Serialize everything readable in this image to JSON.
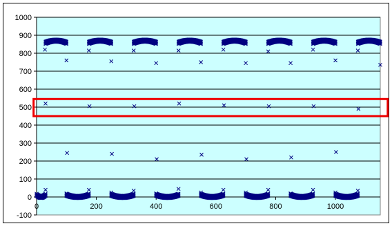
{
  "chart_data": {
    "type": "scatter",
    "title": "",
    "xlabel": "",
    "ylabel": "",
    "xlim": [
      0,
      1150
    ],
    "ylim": [
      -100,
      1000
    ],
    "xticks": [
      0,
      200,
      400,
      600,
      800,
      1000
    ],
    "yticks": [
      -100,
      0,
      100,
      200,
      300,
      400,
      500,
      600,
      700,
      800,
      900,
      1000
    ],
    "grid": true,
    "legend": "none",
    "plot_background": "#ccffff",
    "marker": "x",
    "marker_color": "#000080",
    "series": [
      {
        "clusters": [
          {
            "x_start": 0,
            "x_end": 30,
            "y_center": 0
          },
          {
            "x_start": 30,
            "x_end": 100,
            "y_center": 870
          },
          {
            "x_start": 100,
            "x_end": 175,
            "y_center": 0
          },
          {
            "x_start": 175,
            "x_end": 250,
            "y_center": 870
          },
          {
            "x_start": 250,
            "x_end": 325,
            "y_center": 0
          },
          {
            "x_start": 325,
            "x_end": 400,
            "y_center": 870
          },
          {
            "x_start": 400,
            "x_end": 475,
            "y_center": 0
          },
          {
            "x_start": 475,
            "x_end": 550,
            "y_center": 870
          },
          {
            "x_start": 550,
            "x_end": 625,
            "y_center": 0
          },
          {
            "x_start": 625,
            "x_end": 700,
            "y_center": 870
          },
          {
            "x_start": 700,
            "x_end": 775,
            "y_center": 0
          },
          {
            "x_start": 775,
            "x_end": 850,
            "y_center": 870
          },
          {
            "x_start": 850,
            "x_end": 925,
            "y_center": 0
          },
          {
            "x_start": 925,
            "x_end": 1000,
            "y_center": 870
          },
          {
            "x_start": 1000,
            "x_end": 1075,
            "y_center": 0
          },
          {
            "x_start": 1075,
            "x_end": 1150,
            "y_center": 870
          }
        ],
        "points": [
          {
            "x": 28,
            "y": 820
          },
          {
            "x": 30,
            "y": 520
          },
          {
            "x": 30,
            "y": 40
          },
          {
            "x": 100,
            "y": 760
          },
          {
            "x": 102,
            "y": 245
          },
          {
            "x": 100,
            "y": 20
          },
          {
            "x": 175,
            "y": 815
          },
          {
            "x": 177,
            "y": 505
          },
          {
            "x": 175,
            "y": 40
          },
          {
            "x": 250,
            "y": 755
          },
          {
            "x": 252,
            "y": 240
          },
          {
            "x": 250,
            "y": 25
          },
          {
            "x": 325,
            "y": 815
          },
          {
            "x": 327,
            "y": 505
          },
          {
            "x": 325,
            "y": 35
          },
          {
            "x": 400,
            "y": 745
          },
          {
            "x": 402,
            "y": 210
          },
          {
            "x": 400,
            "y": 20
          },
          {
            "x": 475,
            "y": 815
          },
          {
            "x": 477,
            "y": 520
          },
          {
            "x": 475,
            "y": 45
          },
          {
            "x": 550,
            "y": 750
          },
          {
            "x": 552,
            "y": 235
          },
          {
            "x": 550,
            "y": 25
          },
          {
            "x": 625,
            "y": 820
          },
          {
            "x": 627,
            "y": 510
          },
          {
            "x": 625,
            "y": 40
          },
          {
            "x": 700,
            "y": 745
          },
          {
            "x": 702,
            "y": 210
          },
          {
            "x": 700,
            "y": 25
          },
          {
            "x": 775,
            "y": 810
          },
          {
            "x": 777,
            "y": 505
          },
          {
            "x": 775,
            "y": 40
          },
          {
            "x": 850,
            "y": 745
          },
          {
            "x": 852,
            "y": 220
          },
          {
            "x": 850,
            "y": 20
          },
          {
            "x": 925,
            "y": 820
          },
          {
            "x": 927,
            "y": 505
          },
          {
            "x": 925,
            "y": 40
          },
          {
            "x": 1000,
            "y": 760
          },
          {
            "x": 1002,
            "y": 250
          },
          {
            "x": 1000,
            "y": 25
          },
          {
            "x": 1075,
            "y": 815
          },
          {
            "x": 1077,
            "y": 490
          },
          {
            "x": 1075,
            "y": 35
          },
          {
            "x": 1150,
            "y": 735
          }
        ]
      }
    ],
    "annotations": [
      {
        "type": "rectangle",
        "x_start": -10,
        "x_end": 1175,
        "y_low": 450,
        "y_high": 545,
        "color": "#ee0000"
      }
    ]
  }
}
